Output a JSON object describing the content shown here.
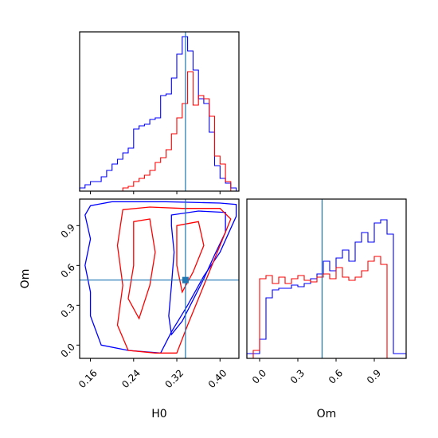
{
  "chart_data": [
    {
      "type": "histogram",
      "panel": "H0 marginal",
      "xlim": [
        0.14,
        0.435
      ],
      "ylim": [
        0,
        1.0
      ],
      "truth_x": 0.336,
      "bin_edges": [
        0.14,
        0.15,
        0.16,
        0.17,
        0.18,
        0.19,
        0.2,
        0.21,
        0.22,
        0.23,
        0.24,
        0.25,
        0.26,
        0.27,
        0.28,
        0.29,
        0.3,
        0.31,
        0.32,
        0.33,
        0.34,
        0.35,
        0.36,
        0.37,
        0.38,
        0.39,
        0.4,
        0.41,
        0.42,
        0.43
      ],
      "series": [
        {
          "color": "#0000ff",
          "values": [
            0.02,
            0.04,
            0.06,
            0.06,
            0.09,
            0.13,
            0.17,
            0.2,
            0.24,
            0.27,
            0.39,
            0.41,
            0.42,
            0.45,
            0.46,
            0.6,
            0.61,
            0.71,
            0.86,
            0.97,
            0.88,
            0.76,
            0.58,
            0.55,
            0.37,
            0.16,
            0.08,
            0.05,
            0.02
          ]
        },
        {
          "color": "#ff0000",
          "values": [
            0,
            0,
            0,
            0,
            0,
            0,
            0,
            0,
            0.02,
            0.03,
            0.06,
            0.08,
            0.1,
            0.13,
            0.18,
            0.21,
            0.26,
            0.36,
            0.46,
            0.55,
            0.75,
            0.54,
            0.6,
            0.58,
            0.47,
            0.22,
            0.17,
            0.06,
            0
          ]
        }
      ]
    },
    {
      "type": "contour",
      "panel": "H0 vs Om joint",
      "xlabel": "H0",
      "ylabel": "Om",
      "xlim": [
        0.14,
        0.435
      ],
      "ylim": [
        -0.1,
        1.1
      ],
      "xticks": [
        "0.16",
        "0.24",
        "0.32",
        "0.40"
      ],
      "xtick_values": [
        0.16,
        0.24,
        0.32,
        0.4
      ],
      "yticks": [
        "0.0",
        "0.3",
        "0.6",
        "0.9"
      ],
      "ytick_values": [
        0.0,
        0.3,
        0.6,
        0.9
      ],
      "truth": {
        "x": 0.336,
        "y": 0.49
      },
      "series": [
        {
          "color": "#0000ff",
          "contours": [
            [
              [
                0.16,
                1.05
              ],
              [
                0.2,
                1.08
              ],
              [
                0.3,
                1.08
              ],
              [
                0.4,
                1.07
              ],
              [
                0.43,
                1.06
              ],
              [
                0.43,
                0.97
              ],
              [
                0.42,
                0.88
              ],
              [
                0.4,
                0.7
              ],
              [
                0.37,
                0.52
              ],
              [
                0.34,
                0.3
              ],
              [
                0.31,
                0.1
              ],
              [
                0.29,
                -0.06
              ],
              [
                0.23,
                -0.04
              ],
              [
                0.18,
                0.0
              ],
              [
                0.16,
                0.22
              ],
              [
                0.16,
                0.4
              ],
              [
                0.15,
                0.6
              ],
              [
                0.16,
                0.8
              ],
              [
                0.15,
                0.98
              ],
              [
                0.16,
                1.05
              ]
            ],
            [
              [
                0.31,
                0.98
              ],
              [
                0.36,
                1.01
              ],
              [
                0.41,
                1.0
              ],
              [
                0.41,
                0.85
              ],
              [
                0.39,
                0.68
              ],
              [
                0.37,
                0.5
              ],
              [
                0.35,
                0.34
              ],
              [
                0.33,
                0.18
              ],
              [
                0.31,
                0.08
              ],
              [
                0.305,
                0.22
              ],
              [
                0.31,
                0.45
              ],
              [
                0.315,
                0.7
              ],
              [
                0.31,
                0.9
              ],
              [
                0.31,
                0.98
              ]
            ]
          ]
        },
        {
          "color": "#ff0000",
          "contours": [
            [
              [
                0.22,
                1.02
              ],
              [
                0.27,
                1.04
              ],
              [
                0.33,
                1.03
              ],
              [
                0.4,
                1.03
              ],
              [
                0.42,
                0.95
              ],
              [
                0.4,
                0.75
              ],
              [
                0.38,
                0.55
              ],
              [
                0.36,
                0.35
              ],
              [
                0.34,
                0.15
              ],
              [
                0.32,
                -0.06
              ],
              [
                0.28,
                -0.06
              ],
              [
                0.23,
                -0.04
              ],
              [
                0.21,
                0.15
              ],
              [
                0.22,
                0.45
              ],
              [
                0.21,
                0.75
              ],
              [
                0.22,
                1.02
              ]
            ],
            [
              [
                0.24,
                0.93
              ],
              [
                0.27,
                0.95
              ],
              [
                0.28,
                0.7
              ],
              [
                0.27,
                0.45
              ],
              [
                0.25,
                0.2
              ],
              [
                0.23,
                0.35
              ],
              [
                0.24,
                0.6
              ],
              [
                0.24,
                0.93
              ]
            ],
            [
              [
                0.32,
                0.9
              ],
              [
                0.36,
                0.93
              ],
              [
                0.37,
                0.75
              ],
              [
                0.35,
                0.55
              ],
              [
                0.33,
                0.4
              ],
              [
                0.32,
                0.6
              ],
              [
                0.32,
                0.9
              ]
            ]
          ]
        }
      ]
    },
    {
      "type": "histogram",
      "panel": "Om marginal",
      "xlabel": "Om",
      "xlim": [
        -0.1,
        1.15
      ],
      "ylim": [
        0,
        1.0
      ],
      "xticks": [
        "0.0",
        "0.3",
        "0.6",
        "0.9"
      ],
      "xtick_values": [
        0.0,
        0.3,
        0.6,
        0.9
      ],
      "truth_x": 0.49,
      "bin_edges": [
        -0.1,
        -0.05,
        0.0,
        0.05,
        0.1,
        0.15,
        0.2,
        0.25,
        0.3,
        0.35,
        0.4,
        0.45,
        0.5,
        0.55,
        0.6,
        0.65,
        0.7,
        0.75,
        0.8,
        0.85,
        0.9,
        0.95,
        1.0,
        1.05,
        1.1,
        1.15
      ],
      "series": [
        {
          "color": "#0000ff",
          "values": [
            0.03,
            0.03,
            0.12,
            0.38,
            0.43,
            0.44,
            0.44,
            0.46,
            0.45,
            0.47,
            0.5,
            0.53,
            0.61,
            0.55,
            0.63,
            0.68,
            0.61,
            0.73,
            0.79,
            0.73,
            0.85,
            0.87,
            0.78,
            0.03,
            0.03
          ]
        },
        {
          "color": "#ff0000",
          "values": [
            0,
            0.05,
            0.5,
            0.52,
            0.47,
            0.51,
            0.47,
            0.5,
            0.52,
            0.49,
            0.48,
            0.51,
            0.53,
            0.5,
            0.57,
            0.51,
            0.49,
            0.51,
            0.55,
            0.61,
            0.64,
            0.59,
            0,
            0,
            0
          ]
        }
      ]
    }
  ]
}
